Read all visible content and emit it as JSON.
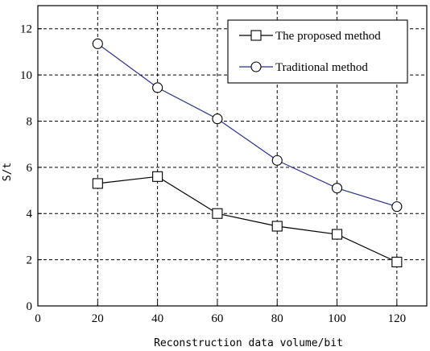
{
  "chart_data": {
    "type": "line",
    "title": "",
    "xlabel": "Reconstruction data volume/bit",
    "ylabel": "S/t",
    "xlim": [
      0,
      130
    ],
    "ylim": [
      0,
      13
    ],
    "x_ticks": [
      0,
      20,
      40,
      60,
      80,
      100,
      120
    ],
    "y_ticks": [
      0,
      2,
      4,
      6,
      8,
      10,
      12
    ],
    "grid": true,
    "legend_position": "top-right",
    "x": [
      20,
      40,
      60,
      80,
      100,
      120
    ],
    "series": [
      {
        "name": "The proposed method",
        "values": [
          5.3,
          5.6,
          4.0,
          3.45,
          3.1,
          1.9
        ],
        "marker": "square",
        "color": "#000000"
      },
      {
        "name": "Traditional method",
        "values": [
          11.35,
          9.45,
          8.1,
          6.3,
          5.1,
          4.3
        ],
        "marker": "circle",
        "color": "#2b2e8c"
      }
    ]
  }
}
